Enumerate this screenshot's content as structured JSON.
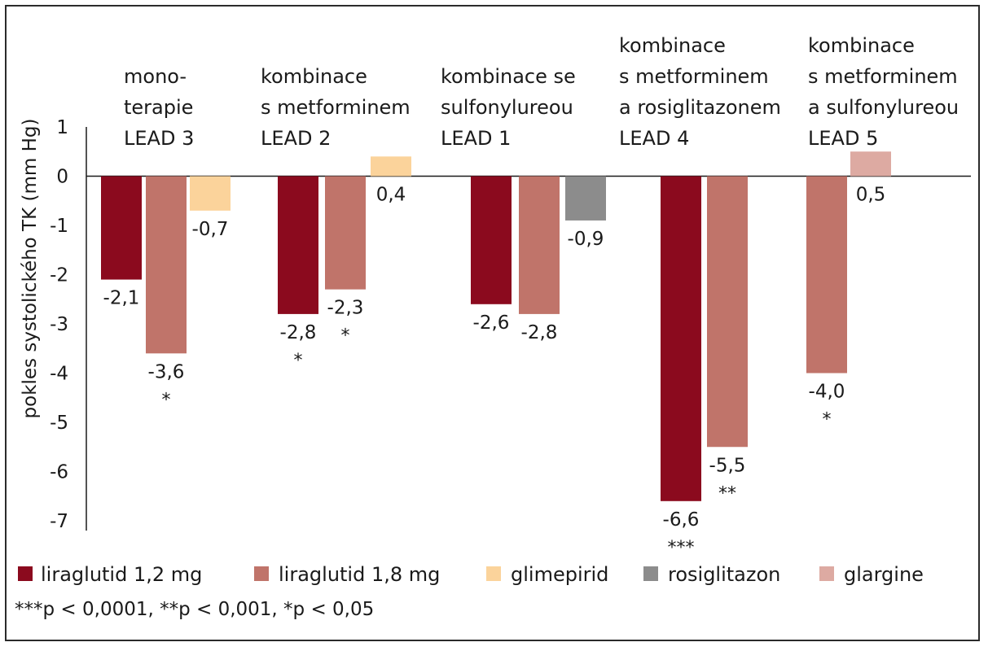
{
  "chart_data": {
    "type": "bar",
    "ylabel": "pokles systolického TK (mm Hg)",
    "ylim": [
      -7,
      1
    ],
    "yticks": [
      "1",
      "0",
      "-1",
      "-2",
      "-3",
      "-4",
      "-5",
      "-6",
      "-7"
    ],
    "grid": false,
    "legend_position": "bottom",
    "series": [
      {
        "name": "liraglutid 1,2 mg",
        "color": "#8b0a1e"
      },
      {
        "name": "liraglutid 1,8 mg",
        "color": "#c0746a"
      },
      {
        "name": "glimepirid",
        "color": "#fbd39b"
      },
      {
        "name": "rosiglitazon",
        "color": "#8c8c8c"
      },
      {
        "name": "glargine",
        "color": "#ddaaa2"
      }
    ],
    "groups": [
      {
        "label_lines": [
          "mono-",
          "terapie",
          "LEAD 3"
        ],
        "bars": [
          {
            "series": 0,
            "value": -2.1,
            "label": "-2,1",
            "sig": ""
          },
          {
            "series": 1,
            "value": -3.6,
            "label": "-3,6",
            "sig": "*"
          },
          {
            "series": 2,
            "value": -0.7,
            "label": "-0,7",
            "sig": ""
          }
        ]
      },
      {
        "label_lines": [
          "kombinace",
          "s metforminem",
          "LEAD 2"
        ],
        "bars": [
          {
            "series": 0,
            "value": -2.8,
            "label": "-2,8",
            "sig": "*"
          },
          {
            "series": 1,
            "value": -2.3,
            "label": "-2,3",
            "sig": "*"
          },
          {
            "series": 2,
            "value": 0.4,
            "label": "0,4",
            "sig": ""
          }
        ]
      },
      {
        "label_lines": [
          "kombinace se",
          "sulfonylureou",
          "LEAD 1"
        ],
        "bars": [
          {
            "series": 0,
            "value": -2.6,
            "label": "-2,6",
            "sig": ""
          },
          {
            "series": 1,
            "value": -2.8,
            "label": "-2,8",
            "sig": ""
          },
          {
            "series": 3,
            "value": -0.9,
            "label": "-0,9",
            "sig": ""
          }
        ]
      },
      {
        "label_lines": [
          "kombinace",
          "s metforminem",
          "a rosiglitazonem",
          "LEAD 4"
        ],
        "bars": [
          {
            "series": 0,
            "value": -6.6,
            "label": "-6,6",
            "sig": "***"
          },
          {
            "series": 1,
            "value": -5.5,
            "label": "-5,5",
            "sig": "**"
          }
        ]
      },
      {
        "label_lines": [
          "kombinace",
          "s metforminem",
          "a sulfonylureou",
          "LEAD 5"
        ],
        "bars": [
          {
            "series": 1,
            "value": -4.0,
            "label": "-4,0",
            "sig": "*"
          },
          {
            "series": 4,
            "value": 0.5,
            "label": "0,5",
            "sig": ""
          }
        ]
      }
    ],
    "footnote": "***p < 0,0001, **p < 0,001, *p < 0,05"
  }
}
